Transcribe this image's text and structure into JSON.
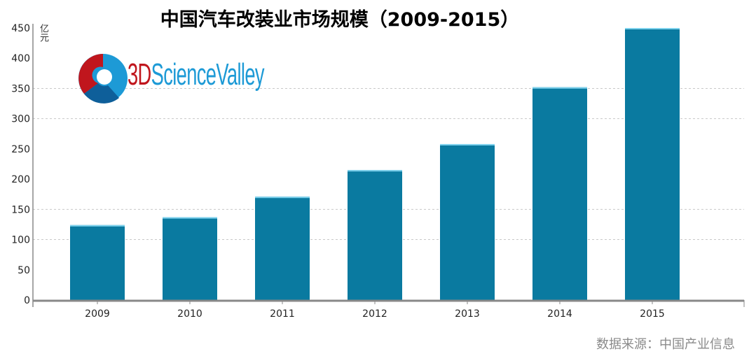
{
  "title": "中国汽车改装业市场规模（2009-2015）",
  "source": "数据来源：中国产业信息",
  "logo": {
    "text_3d": "3D",
    "text_rest": "ScienceValley"
  },
  "colors": {
    "bar": "#0a7aa0",
    "bar_top": "#7fd3ee",
    "grid": "#c8c8c8",
    "axis": "#888888",
    "logo_red": "#c0161d",
    "logo_blue": "#1d9ad6"
  },
  "chart_data": {
    "type": "bar",
    "title": "中国汽车改装业市场规模（2009-2015）",
    "ylabel": "亿元",
    "xlabel": "",
    "categories": [
      "2009",
      "2010",
      "2011",
      "2012",
      "2013",
      "2014",
      "2015"
    ],
    "values": [
      124,
      137,
      171,
      215,
      258,
      352,
      450
    ],
    "ylim": [
      0,
      450
    ],
    "yticks": [
      0,
      50,
      100,
      150,
      200,
      250,
      300,
      350,
      400,
      450
    ],
    "grid_lines": [
      100,
      150,
      300,
      350
    ],
    "grid": true,
    "legend": "none"
  }
}
